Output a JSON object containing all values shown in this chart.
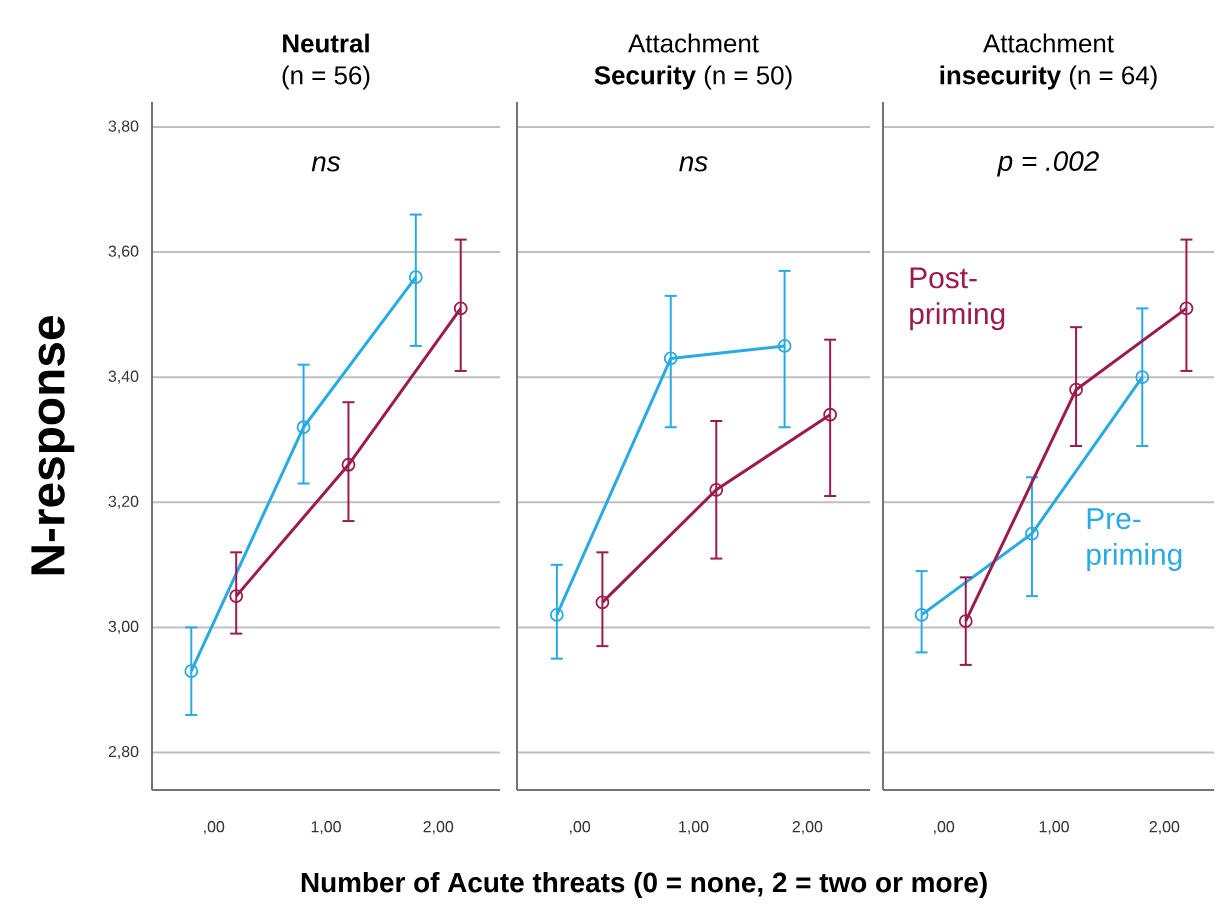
{
  "chart_data": [
    {
      "type": "line",
      "title": "**Neutral**",
      "subtitle": "(n = 56)",
      "ylabel": "N-response",
      "annotations": [
        "ns"
      ],
      "marker": "circle",
      "line_style": "solid",
      "grid": "y",
      "xlim": [
        -0.55,
        2.55
      ],
      "ylim": [
        2.74,
        3.84
      ],
      "xticks": [
        {
          "value": 0,
          "label": ",00"
        },
        {
          "value": 1,
          "label": "1,00"
        },
        {
          "value": 2,
          "label": "2,00"
        }
      ],
      "yticks": [
        {
          "value": 2.8,
          "label": "2,80"
        },
        {
          "value": 3.0,
          "label": "3,00"
        },
        {
          "value": 3.2,
          "label": "3,20"
        },
        {
          "value": 3.4,
          "label": "3,40"
        },
        {
          "value": 3.6,
          "label": "3,60"
        },
        {
          "value": 3.8,
          "label": "3,80"
        }
      ],
      "series": [
        {
          "color": "#29abe2",
          "x": [
            -0.2,
            0.8,
            1.8
          ],
          "values": [
            2.93,
            3.32,
            3.56
          ],
          "errors": [
            [
              2.86,
              3.0
            ],
            [
              3.23,
              3.42
            ],
            [
              3.45,
              3.66
            ]
          ]
        },
        {
          "color": "#9b1b4f",
          "x": [
            0.2,
            1.2,
            2.2
          ],
          "values": [
            3.05,
            3.26,
            3.51
          ],
          "errors": [
            [
              2.99,
              3.12
            ],
            [
              3.17,
              3.36
            ],
            [
              3.41,
              3.62
            ]
          ]
        }
      ]
    },
    {
      "type": "line",
      "title": "Attachment",
      "subtitle": "**Security** (n = 50)",
      "xlabel": "Number of Acute threats (0 = none, 2 = two or more)",
      "annotations": [
        "ns"
      ],
      "marker": "circle",
      "line_style": "solid",
      "grid": "y",
      "tick_labels": "x",
      "xlim": [
        -0.55,
        2.55
      ],
      "ylim": [
        2.74,
        3.84
      ],
      "xticks": [
        {
          "value": 0,
          "label": ",00"
        },
        {
          "value": 1,
          "label": "1,00"
        },
        {
          "value": 2,
          "label": "2,00"
        }
      ],
      "yticks": [
        2.8,
        3.0,
        3.2,
        3.4,
        3.6,
        3.8
      ],
      "series": [
        {
          "color": "#29abe2",
          "x": [
            -0.2,
            0.8,
            1.8
          ],
          "values": [
            3.02,
            3.43,
            3.45
          ],
          "errors": [
            [
              2.95,
              3.1
            ],
            [
              3.32,
              3.53
            ],
            [
              3.32,
              3.57
            ]
          ]
        },
        {
          "color": "#9b1b4f",
          "x": [
            0.2,
            1.2,
            2.2
          ],
          "values": [
            3.04,
            3.22,
            3.34
          ],
          "errors": [
            [
              2.97,
              3.12
            ],
            [
              3.11,
              3.33
            ],
            [
              3.21,
              3.46
            ]
          ]
        }
      ]
    },
    {
      "type": "line",
      "title": "Attachment",
      "subtitle": "**insecurity** (n = 64)",
      "annotations": [
        "p = .002"
      ],
      "marker": "circle",
      "line_style": "solid",
      "grid": "y",
      "tick_labels": "x",
      "xlim": [
        -0.55,
        2.45
      ],
      "ylim": [
        2.74,
        3.84
      ],
      "xticks": [
        {
          "value": 0,
          "label": ",00"
        },
        {
          "value": 1,
          "label": "1,00"
        },
        {
          "value": 2,
          "label": "2,00"
        }
      ],
      "yticks": [
        2.8,
        3.0,
        3.2,
        3.4,
        3.6,
        3.8
      ],
      "series": [
        {
          "name": "Pre-priming",
          "color": "#29abe2",
          "x": [
            -0.2,
            0.8,
            1.8
          ],
          "values": [
            3.02,
            3.15,
            3.4
          ],
          "errors": [
            [
              2.96,
              3.09
            ],
            [
              3.05,
              3.24
            ],
            [
              3.29,
              3.51
            ]
          ]
        },
        {
          "name": "Post-priming",
          "color": "#9b1b4f",
          "x": [
            0.2,
            1.2,
            2.2
          ],
          "values": [
            3.01,
            3.38,
            3.51
          ],
          "errors": [
            [
              2.94,
              3.08
            ],
            [
              3.29,
              3.48
            ],
            [
              3.41,
              3.62
            ]
          ]
        }
      ]
    }
  ]
}
